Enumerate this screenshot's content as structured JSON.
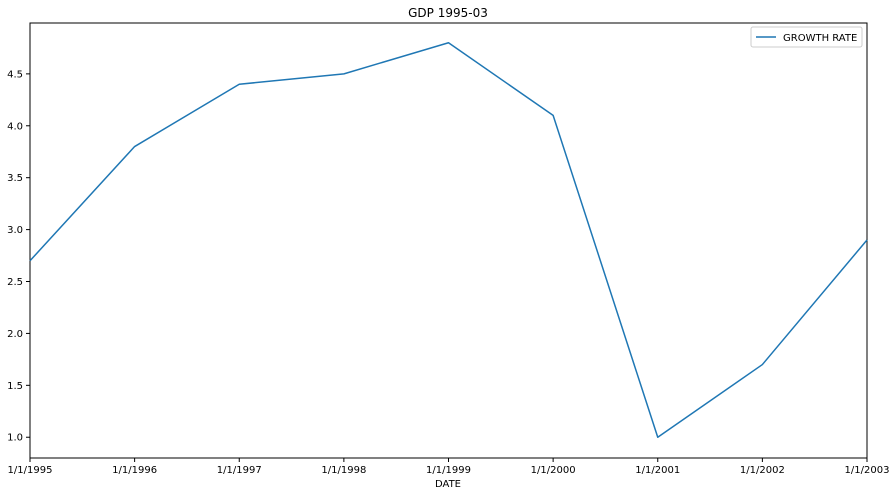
{
  "chart_data": {
    "type": "line",
    "title": "GDP 1995-03",
    "xlabel": "DATE",
    "ylabel": "",
    "categories": [
      "1/1/1995",
      "1/1/1996",
      "1/1/1997",
      "1/1/1998",
      "1/1/1999",
      "1/1/2000",
      "1/1/2001",
      "1/1/2002",
      "1/1/2003"
    ],
    "series": [
      {
        "name": "GROWTH RATE",
        "values": [
          2.7,
          3.8,
          4.4,
          4.5,
          4.8,
          4.1,
          1.0,
          1.7,
          2.9
        ],
        "color": "#1f77b4"
      }
    ],
    "ylim": [
      0.8,
      4.99
    ],
    "yticks": [
      "1.0",
      "1.5",
      "2.0",
      "2.5",
      "3.0",
      "3.5",
      "4.0",
      "4.5"
    ],
    "grid": false,
    "legend": "top-right"
  }
}
